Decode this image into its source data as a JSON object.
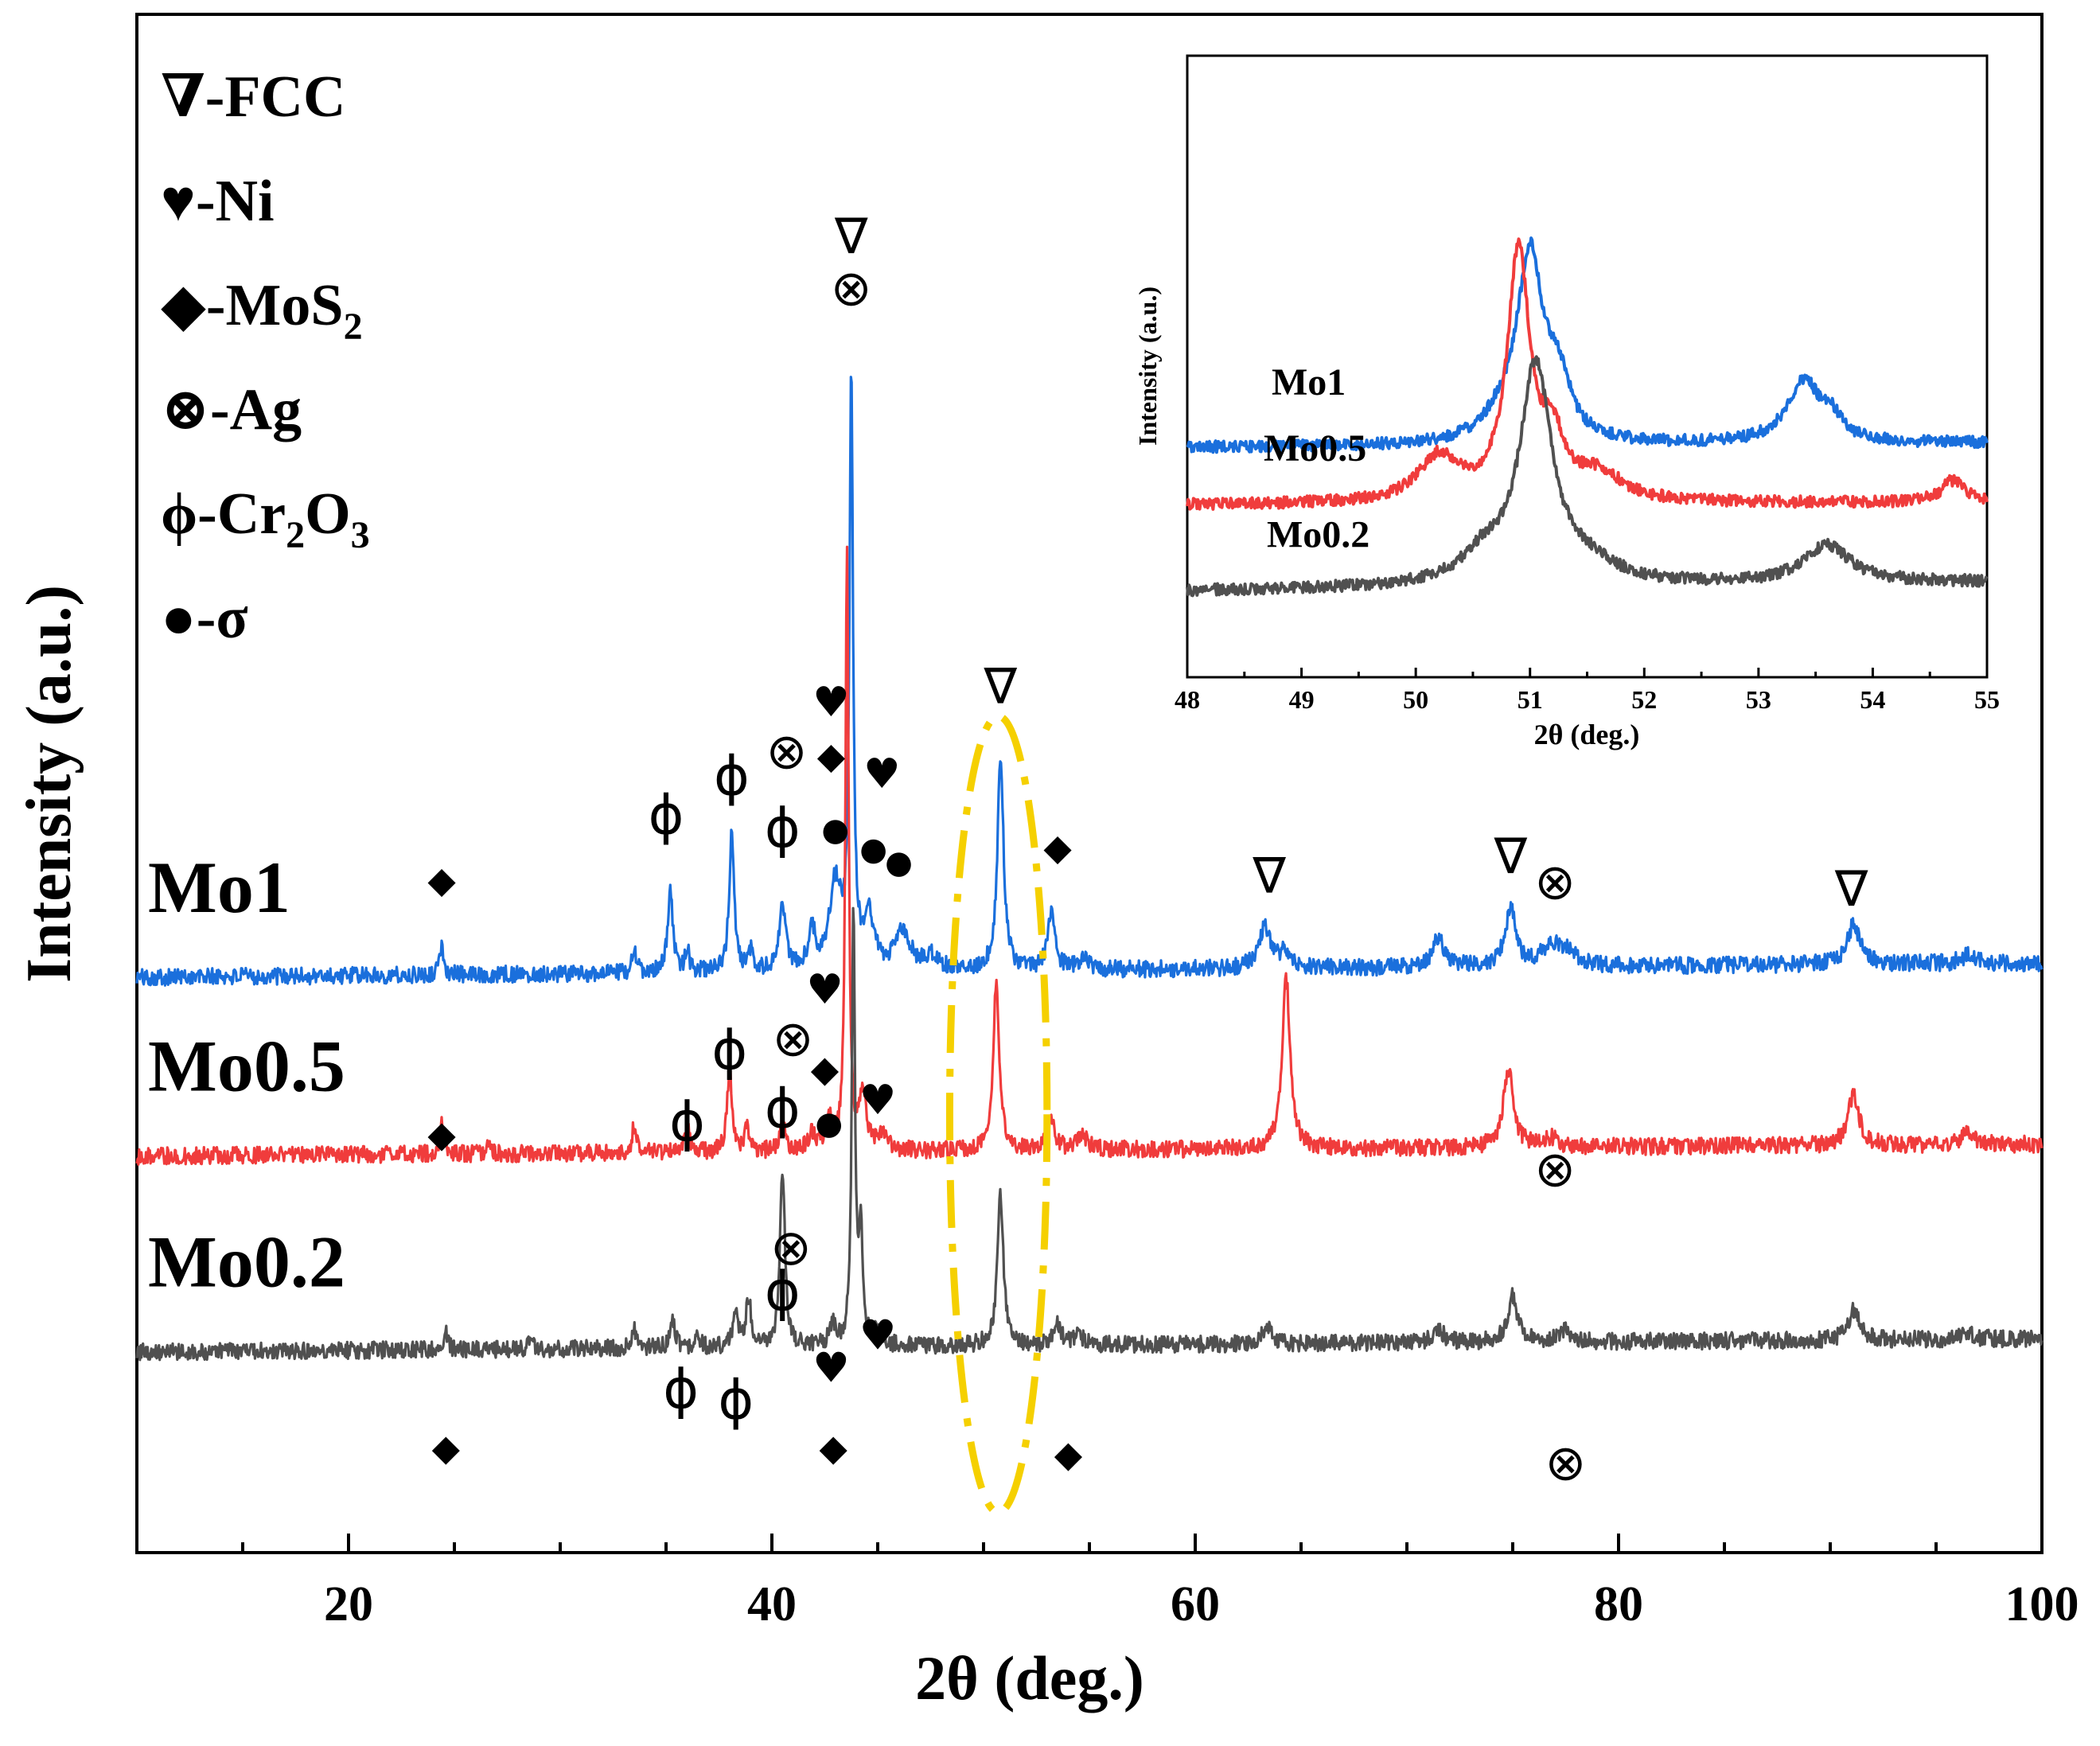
{
  "chart_data": {
    "type": "line",
    "title": "",
    "xlabel": "2θ (deg.)",
    "ylabel": "Intensity (a.u.)",
    "xlim": [
      10,
      100
    ],
    "x_ticks": [
      20,
      40,
      60,
      80,
      100
    ],
    "x_tick_labels": [
      "20",
      "40",
      "60",
      "80",
      "100"
    ],
    "grid": false,
    "series": [
      {
        "name": "Mo1",
        "color": "#1a6fdc",
        "baseline_left": 42.5,
        "baseline_right": 43.6,
        "peaks": [
          [
            24.4,
            2.2,
            0.12
          ],
          [
            33.5,
            1.8,
            0.12
          ],
          [
            35.2,
            6.5,
            0.14
          ],
          [
            36.0,
            1.6,
            0.12
          ],
          [
            38.1,
            10.5,
            0.14
          ],
          [
            39.0,
            1.5,
            0.12
          ],
          [
            40.5,
            5.2,
            0.18
          ],
          [
            41.9,
            2.8,
            0.2
          ],
          [
            43.0,
            6.5,
            0.35
          ],
          [
            43.75,
            45.0,
            0.1
          ],
          [
            44.6,
            3.8,
            0.3
          ],
          [
            46.2,
            3.0,
            0.4
          ],
          [
            47.5,
            1.0,
            0.4
          ],
          [
            50.8,
            16.5,
            0.17
          ],
          [
            53.2,
            4.3,
            0.2
          ],
          [
            54.7,
            0.8,
            0.3
          ],
          [
            63.3,
            3.2,
            0.35
          ],
          [
            64.2,
            1.0,
            0.25
          ],
          [
            71.5,
            2.3,
            0.3
          ],
          [
            74.9,
            4.5,
            0.3
          ],
          [
            76.8,
            1.6,
            0.5
          ],
          [
            77.6,
            1.1,
            0.4
          ],
          [
            91.1,
            3.0,
            0.35
          ],
          [
            96.5,
            0.6,
            0.4
          ]
        ]
      },
      {
        "name": "Mo0.5",
        "color": "#f03c3c",
        "baseline_left": 28.8,
        "baseline_right": 29.7,
        "peaks": [
          [
            24.4,
            2.3,
            0.12
          ],
          [
            26.6,
            0.6,
            0.12
          ],
          [
            33.5,
            2.2,
            0.12
          ],
          [
            36.0,
            2.0,
            0.12
          ],
          [
            38.0,
            6.3,
            0.14
          ],
          [
            38.8,
            1.8,
            0.12
          ],
          [
            40.5,
            2.5,
            0.15
          ],
          [
            41.9,
            1.2,
            0.2
          ],
          [
            42.7,
            2.3,
            0.2
          ],
          [
            43.55,
            46.0,
            0.09
          ],
          [
            44.3,
            4.0,
            0.2
          ],
          [
            45.2,
            1.0,
            0.3
          ],
          [
            50.6,
            13.0,
            0.17
          ],
          [
            53.2,
            2.5,
            0.2
          ],
          [
            54.7,
            1.0,
            0.3
          ],
          [
            64.3,
            13.0,
            0.22
          ],
          [
            74.8,
            6.0,
            0.28
          ],
          [
            76.8,
            0.7,
            0.4
          ],
          [
            91.1,
            4.0,
            0.3
          ],
          [
            96.5,
            0.9,
            0.35
          ]
        ]
      },
      {
        "name": "Mo0.2",
        "color": "#505050",
        "baseline_left": 13.8,
        "baseline_right": 14.8,
        "peaks": [
          [
            24.6,
            1.2,
            0.12
          ],
          [
            28.6,
            0.8,
            0.12
          ],
          [
            33.5,
            1.5,
            0.12
          ],
          [
            35.3,
            2.4,
            0.13
          ],
          [
            36.5,
            1.0,
            0.12
          ],
          [
            38.3,
            2.8,
            0.14
          ],
          [
            38.9,
            3.8,
            0.14
          ],
          [
            40.5,
            13.5,
            0.14
          ],
          [
            42.9,
            1.5,
            0.2
          ],
          [
            43.85,
            33.0,
            0.09
          ],
          [
            44.2,
            8.5,
            0.12
          ],
          [
            45.0,
            1.0,
            0.25
          ],
          [
            50.8,
            11.5,
            0.17
          ],
          [
            53.5,
            1.5,
            0.2
          ],
          [
            54.5,
            0.7,
            0.3
          ],
          [
            63.4,
            1.2,
            0.3
          ],
          [
            71.5,
            1.0,
            0.3
          ],
          [
            75.0,
            3.5,
            0.28
          ],
          [
            77.5,
            0.8,
            0.4
          ],
          [
            91.1,
            2.3,
            0.3
          ],
          [
            96.5,
            0.5,
            0.35
          ]
        ]
      }
    ],
    "series_labels": [
      {
        "text": "Mo1",
        "series": 0
      },
      {
        "text": "Mo0.5",
        "series": 1
      },
      {
        "text": "Mo0.2",
        "series": 2
      }
    ],
    "legend": {
      "placement": "top-left",
      "entries": [
        {
          "symbol": "∇",
          "sep": "-",
          "name": "FCC",
          "sub": "",
          "tail": ""
        },
        {
          "symbol": "♥",
          "sep": "-",
          "name": "Ni",
          "sub": "",
          "tail": ""
        },
        {
          "symbol": "◆",
          "sep": "-",
          "name": "MoS",
          "sub": "2",
          "tail": ""
        },
        {
          "symbol": "⊗",
          "sep": "-",
          "name": "Ag",
          "sub": "",
          "tail": ""
        },
        {
          "symbol": "ϕ",
          "sep": "-",
          "name": "Cr",
          "sub": "2",
          "tail": "O",
          "sub2": "3"
        },
        {
          "symbol": "●",
          "sep": "-",
          "name": "σ",
          "sub": "",
          "tail": ""
        }
      ]
    },
    "annotations": [
      {
        "symbol": "∇",
        "x": 43.75,
        "i": 98.0
      },
      {
        "symbol": "⊗",
        "x": 43.75,
        "i": 94.0
      },
      {
        "symbol": "∇",
        "x": 50.8,
        "i": 63.5
      },
      {
        "symbol": "♥",
        "x": 42.8,
        "i": 62.5
      },
      {
        "symbol": "◆",
        "x": 42.8,
        "i": 58.5
      },
      {
        "symbol": "⊗",
        "x": 40.7,
        "i": 58.5
      },
      {
        "symbol": "♥",
        "x": 45.2,
        "i": 57.0
      },
      {
        "symbol": "ϕ",
        "x": 38.1,
        "i": 56.5
      },
      {
        "symbol": "ϕ",
        "x": 35.0,
        "i": 53.5
      },
      {
        "symbol": "ϕ",
        "x": 40.5,
        "i": 52.5
      },
      {
        "symbol": "●",
        "x": 43.0,
        "i": 53.0
      },
      {
        "symbol": "●",
        "x": 44.8,
        "i": 51.5
      },
      {
        "symbol": "●",
        "x": 46.0,
        "i": 50.5
      },
      {
        "symbol": "◆",
        "x": 24.4,
        "i": 49.0
      },
      {
        "symbol": "◆",
        "x": 53.5,
        "i": 51.5
      },
      {
        "symbol": "∇",
        "x": 63.5,
        "i": 49.0
      },
      {
        "symbol": "∇",
        "x": 74.9,
        "i": 50.5
      },
      {
        "symbol": "⊗",
        "x": 77.0,
        "i": 48.5
      },
      {
        "symbol": "∇",
        "x": 91.0,
        "i": 48.0
      },
      {
        "symbol": "♥",
        "x": 42.5,
        "i": 40.5
      },
      {
        "symbol": "⊗",
        "x": 41.0,
        "i": 36.5
      },
      {
        "symbol": "ϕ",
        "x": 38.0,
        "i": 35.5
      },
      {
        "symbol": "◆",
        "x": 42.5,
        "i": 34.5
      },
      {
        "symbol": "♥",
        "x": 45.0,
        "i": 32.0
      },
      {
        "symbol": "ϕ",
        "x": 36.0,
        "i": 30.0
      },
      {
        "symbol": "ϕ",
        "x": 40.5,
        "i": 31.0
      },
      {
        "symbol": "●",
        "x": 42.7,
        "i": 30.5
      },
      {
        "symbol": "◆",
        "x": 24.4,
        "i": 29.5
      },
      {
        "symbol": "⊗",
        "x": 77.0,
        "i": 26.5
      },
      {
        "symbol": "⊗",
        "x": 40.9,
        "i": 20.5
      },
      {
        "symbol": "ϕ",
        "x": 40.5,
        "i": 17.0
      },
      {
        "symbol": "♥",
        "x": 45.0,
        "i": 14.0
      },
      {
        "symbol": "♥",
        "x": 42.8,
        "i": 11.5
      },
      {
        "symbol": "ϕ",
        "x": 35.7,
        "i": 9.5
      },
      {
        "symbol": "ϕ",
        "x": 38.3,
        "i": 8.7
      },
      {
        "symbol": "◆",
        "x": 24.6,
        "i": 5.5
      },
      {
        "symbol": "◆",
        "x": 42.9,
        "i": 5.5
      },
      {
        "symbol": "◆",
        "x": 54.0,
        "i": 5.0
      },
      {
        "symbol": "⊗",
        "x": 77.5,
        "i": 4.0
      }
    ],
    "highlight_ellipse": {
      "x_center": 50.7,
      "x_halfwidth": 2.3,
      "i_top": 62.5,
      "i_bottom": 1.5,
      "color": "#f5d000"
    }
  },
  "inset_chart": {
    "type": "line",
    "xlabel": "2θ (deg.)",
    "ylabel": "Intensity (a.u.)",
    "xlim": [
      48,
      55
    ],
    "x_ticks": [
      48,
      49,
      50,
      51,
      52,
      53,
      54,
      55
    ],
    "x_tick_labels": [
      "48",
      "49",
      "50",
      "51",
      "52",
      "53",
      "54",
      "55"
    ],
    "ylim": [
      0,
      100
    ],
    "series": [
      {
        "name": "Mo1",
        "color": "#1a6fdc",
        "baseline_left": 52.0,
        "baseline_right": 53.0,
        "peaks": [
          [
            50.75,
            4.0,
            0.2
          ],
          [
            51.0,
            42.0,
            0.14
          ],
          [
            51.25,
            12.0,
            0.12
          ],
          [
            53.4,
            14.0,
            0.18
          ],
          [
            53.65,
            4.0,
            0.1
          ]
        ]
      },
      {
        "name": "Mo0.5",
        "color": "#f03c3c",
        "baseline_left": 39.0,
        "baseline_right": 39.5,
        "peaks": [
          [
            50.2,
            10.0,
            0.22
          ],
          [
            50.9,
            56.0,
            0.12
          ],
          [
            51.2,
            12.0,
            0.12
          ],
          [
            51.6,
            6.0,
            0.25
          ],
          [
            54.7,
            5.0,
            0.12
          ]
        ]
      },
      {
        "name": "Mo0.2",
        "color": "#505050",
        "baseline_left": 19.5,
        "baseline_right": 21.5,
        "peaks": [
          [
            50.6,
            6.0,
            0.25
          ],
          [
            51.05,
            49.0,
            0.17
          ],
          [
            51.5,
            4.0,
            0.3
          ],
          [
            53.6,
            8.5,
            0.25
          ]
        ]
      }
    ],
    "series_labels": [
      {
        "text": "Mo1",
        "series": 0
      },
      {
        "text": "Mo0.5",
        "series": 1
      },
      {
        "text": "Mo0.2",
        "series": 2
      }
    ]
  }
}
